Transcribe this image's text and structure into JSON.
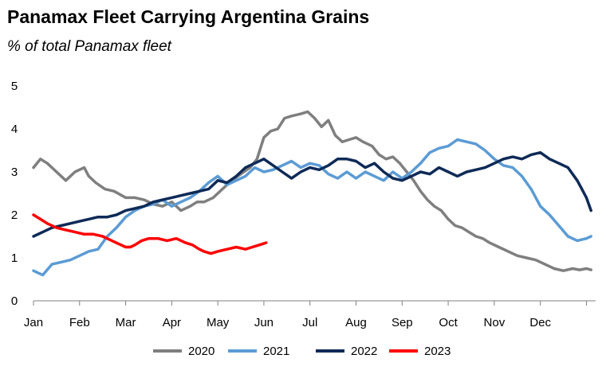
{
  "chart_data": {
    "type": "line",
    "title": "Panamax Fleet Carrying Argentina Grains",
    "subtitle": "% of total Panamax fleet",
    "xlabel": "",
    "ylabel": "",
    "x_tick_labels": [
      "Jan",
      "Feb",
      "Mar",
      "Apr",
      "May",
      "Jun",
      "Jul",
      "Aug",
      "Sep",
      "Oct",
      "Nov",
      "Dec"
    ],
    "y_ticks": [
      0,
      1,
      2,
      3,
      4,
      5
    ],
    "ylim": [
      0,
      5
    ],
    "xlim": [
      0,
      12.2
    ],
    "legend_position": "bottom",
    "grid": false,
    "series": [
      {
        "name": "2020",
        "color": "#7f7f7f",
        "x": [
          0,
          0.15,
          0.3,
          0.5,
          0.7,
          0.9,
          1.1,
          1.2,
          1.35,
          1.55,
          1.75,
          2.0,
          2.2,
          2.4,
          2.6,
          2.8,
          3.0,
          3.2,
          3.4,
          3.55,
          3.7,
          3.9,
          4.1,
          4.3,
          4.5,
          4.7,
          4.85,
          5.0,
          5.15,
          5.3,
          5.45,
          5.6,
          5.8,
          5.95,
          6.1,
          6.25,
          6.4,
          6.55,
          6.7,
          6.85,
          7.0,
          7.15,
          7.35,
          7.5,
          7.65,
          7.8,
          7.95,
          8.1,
          8.25,
          8.4,
          8.55,
          8.7,
          8.85,
          9.0,
          9.15,
          9.3,
          9.45,
          9.6,
          9.75,
          9.9,
          10.1,
          10.3,
          10.5,
          10.7,
          10.9,
          11.1,
          11.3,
          11.5,
          11.7,
          11.85,
          12.0,
          12.1
        ],
        "y": [
          3.1,
          3.3,
          3.2,
          3.0,
          2.8,
          3.0,
          3.1,
          2.9,
          2.75,
          2.6,
          2.55,
          2.4,
          2.4,
          2.35,
          2.25,
          2.2,
          2.3,
          2.1,
          2.2,
          2.3,
          2.3,
          2.4,
          2.6,
          2.8,
          2.95,
          3.1,
          3.3,
          3.8,
          3.95,
          4.0,
          4.25,
          4.3,
          4.35,
          4.4,
          4.25,
          4.05,
          4.2,
          3.85,
          3.7,
          3.75,
          3.8,
          3.7,
          3.6,
          3.4,
          3.3,
          3.35,
          3.2,
          3.0,
          2.8,
          2.55,
          2.35,
          2.2,
          2.1,
          1.9,
          1.75,
          1.7,
          1.6,
          1.5,
          1.45,
          1.35,
          1.25,
          1.15,
          1.05,
          1.0,
          0.95,
          0.85,
          0.75,
          0.7,
          0.75,
          0.72,
          0.75,
          0.72
        ]
      },
      {
        "name": "2021",
        "color": "#5b9bd5",
        "x": [
          0,
          0.1,
          0.2,
          0.4,
          0.6,
          0.8,
          1.0,
          1.2,
          1.4,
          1.5,
          1.6,
          1.8,
          2.0,
          2.2,
          2.4,
          2.6,
          2.8,
          3.0,
          3.2,
          3.4,
          3.6,
          3.8,
          4.0,
          4.2,
          4.4,
          4.6,
          4.8,
          5.0,
          5.2,
          5.4,
          5.6,
          5.8,
          6.0,
          6.2,
          6.4,
          6.6,
          6.8,
          7.0,
          7.2,
          7.4,
          7.6,
          7.8,
          8.0,
          8.2,
          8.4,
          8.6,
          8.8,
          9.0,
          9.2,
          9.4,
          9.6,
          9.8,
          10.0,
          10.2,
          10.4,
          10.6,
          10.8,
          11.0,
          11.2,
          11.4,
          11.6,
          11.8,
          12.0,
          12.1
        ],
        "y": [
          0.7,
          0.65,
          0.6,
          0.85,
          0.9,
          0.95,
          1.05,
          1.15,
          1.2,
          1.35,
          1.5,
          1.7,
          1.95,
          2.1,
          2.2,
          2.25,
          2.35,
          2.2,
          2.3,
          2.4,
          2.55,
          2.75,
          2.9,
          2.7,
          2.8,
          2.9,
          3.1,
          3.0,
          3.05,
          3.15,
          3.25,
          3.1,
          3.2,
          3.15,
          2.95,
          2.85,
          3.0,
          2.85,
          3.0,
          2.9,
          2.8,
          3.0,
          2.85,
          3.0,
          3.2,
          3.45,
          3.55,
          3.6,
          3.75,
          3.7,
          3.65,
          3.5,
          3.3,
          3.15,
          3.1,
          2.9,
          2.6,
          2.2,
          2.0,
          1.75,
          1.5,
          1.4,
          1.45,
          1.5
        ]
      },
      {
        "name": "2022",
        "color": "#0e2a57",
        "x": [
          0,
          0.2,
          0.4,
          0.6,
          0.8,
          1.0,
          1.2,
          1.4,
          1.6,
          1.8,
          2.0,
          2.2,
          2.4,
          2.6,
          2.8,
          3.0,
          3.2,
          3.4,
          3.6,
          3.8,
          4.0,
          4.2,
          4.4,
          4.6,
          4.8,
          5.0,
          5.2,
          5.4,
          5.6,
          5.8,
          6.0,
          6.2,
          6.4,
          6.6,
          6.8,
          7.0,
          7.2,
          7.4,
          7.6,
          7.8,
          8.0,
          8.2,
          8.4,
          8.6,
          8.8,
          9.0,
          9.2,
          9.4,
          9.6,
          9.8,
          10.0,
          10.2,
          10.4,
          10.6,
          10.8,
          11.0,
          11.2,
          11.4,
          11.6,
          11.8,
          11.9,
          12.0,
          12.1
        ],
        "y": [
          1.5,
          1.6,
          1.7,
          1.75,
          1.8,
          1.85,
          1.9,
          1.95,
          1.95,
          2.0,
          2.1,
          2.15,
          2.2,
          2.3,
          2.35,
          2.4,
          2.45,
          2.5,
          2.55,
          2.6,
          2.8,
          2.75,
          2.9,
          3.1,
          3.2,
          3.3,
          3.15,
          3.0,
          2.85,
          3.0,
          3.1,
          3.05,
          3.15,
          3.3,
          3.3,
          3.25,
          3.1,
          3.2,
          3.0,
          2.85,
          2.8,
          2.9,
          3.0,
          2.95,
          3.1,
          3.0,
          2.9,
          3.0,
          3.05,
          3.1,
          3.2,
          3.3,
          3.35,
          3.3,
          3.4,
          3.45,
          3.3,
          3.2,
          3.1,
          2.8,
          2.6,
          2.4,
          2.1
        ]
      },
      {
        "name": "2023",
        "color": "#ff0000",
        "x": [
          0,
          0.15,
          0.3,
          0.5,
          0.7,
          0.9,
          1.1,
          1.3,
          1.5,
          1.7,
          1.9,
          2.0,
          2.1,
          2.2,
          2.35,
          2.5,
          2.7,
          2.9,
          3.1,
          3.3,
          3.45,
          3.6,
          3.7,
          3.85,
          4.0,
          4.2,
          4.4,
          4.6,
          4.75,
          4.9,
          5.05
        ],
        "y": [
          2.0,
          1.9,
          1.8,
          1.7,
          1.65,
          1.6,
          1.55,
          1.55,
          1.5,
          1.4,
          1.3,
          1.25,
          1.25,
          1.3,
          1.4,
          1.45,
          1.45,
          1.4,
          1.45,
          1.35,
          1.3,
          1.2,
          1.15,
          1.1,
          1.15,
          1.2,
          1.25,
          1.2,
          1.25,
          1.3,
          1.35
        ]
      }
    ]
  }
}
